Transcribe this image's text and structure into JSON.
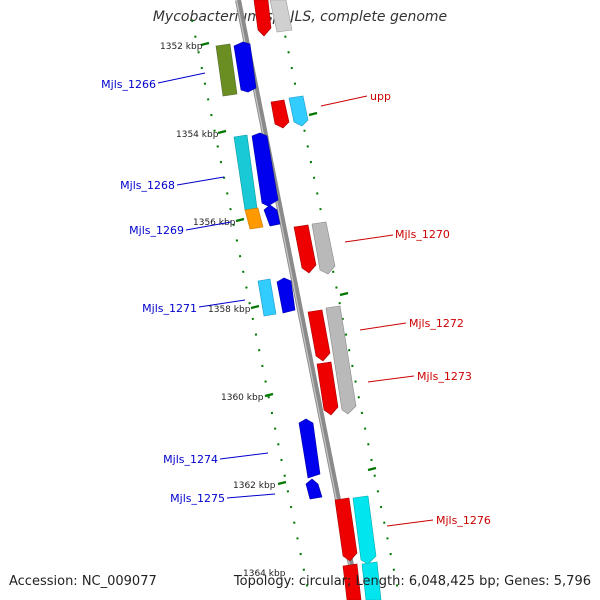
{
  "title": "Mycobacterium sp. JLS, complete genome",
  "accession_text": "Accession: NC_009077",
  "summary_text": "Topology: circular; Length: 6,048,425 bp; Genes: 5,796",
  "colors": {
    "backbone": "#8a8a8a",
    "blue": "#0000ee",
    "red": "#ee0000",
    "cyan": "#19c9d6",
    "lightblue": "#33ccff",
    "gray": "#b9b9b9",
    "olive": "#6b8e23",
    "orange": "#ff9900",
    "green_tick": "#007700",
    "left_label": "#0000cc",
    "right_label": "#cc0000"
  },
  "scale_ticks": [
    {
      "label": "1352 kbp"
    },
    {
      "label": "1354 kbp"
    },
    {
      "label": "1356 kbp"
    },
    {
      "label": "1358 kbp"
    },
    {
      "label": "1360 kbp"
    },
    {
      "label": "1362 kbp"
    },
    {
      "label": "1364 kbp"
    }
  ],
  "gene_labels_left": [
    {
      "label": "Mjls_1266"
    },
    {
      "label": "Mjls_1268"
    },
    {
      "label": "Mjls_1269"
    },
    {
      "label": "Mjls_1271"
    },
    {
      "label": "Mjls_1274"
    },
    {
      "label": "Mjls_1275"
    }
  ],
  "gene_labels_right": [
    {
      "label": "upp"
    },
    {
      "label": "Mjls_1270"
    },
    {
      "label": "Mjls_1272"
    },
    {
      "label": "Mjls_1273"
    },
    {
      "label": "Mjls_1276"
    }
  ]
}
